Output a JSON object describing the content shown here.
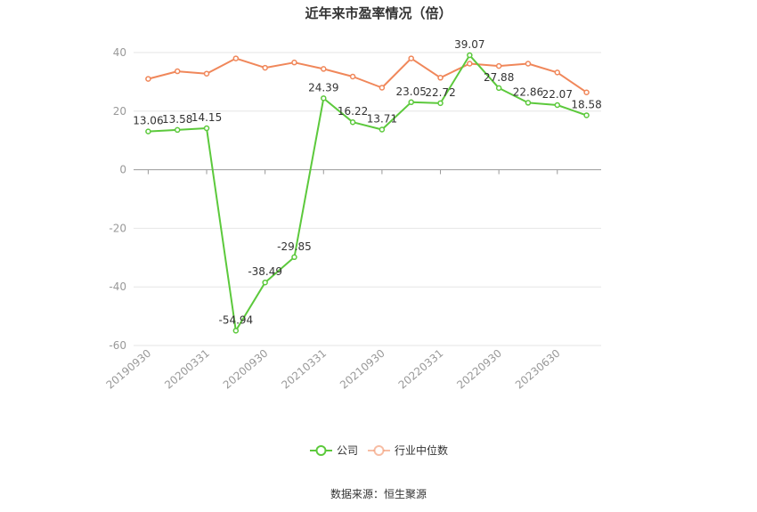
{
  "chart_data": {
    "type": "line",
    "title": "近年来市盈率情况（倍）",
    "source": "数据来源：恒生聚源",
    "x_tick_labels": [
      "20190930",
      "20200331",
      "20200930",
      "20210331",
      "20210930",
      "20220331",
      "20220930",
      "20230630"
    ],
    "x_tick_indices": [
      0,
      2,
      4,
      6,
      8,
      10,
      12,
      14
    ],
    "ylim": [
      -60,
      40
    ],
    "y_ticks": [
      40,
      20,
      0,
      -20,
      -40,
      -60
    ],
    "grid": true,
    "legend_position": "bottom",
    "series": [
      {
        "name": "公司",
        "color": "#5cc93c",
        "values": [
          13.06,
          13.58,
          14.15,
          -54.94,
          -38.49,
          -29.85,
          24.39,
          16.22,
          13.71,
          23.05,
          22.72,
          39.07,
          27.88,
          22.86,
          22.07,
          18.58
        ],
        "labels": [
          "13.06",
          "13.58",
          "14.15",
          "-54.94",
          "-38.49",
          "-29.85",
          "24.39",
          "16.22",
          "13.71",
          "23.05",
          "22.72",
          "39.07",
          "27.88",
          "22.86",
          "22.07",
          "18.58"
        ]
      },
      {
        "name": "行业中位数",
        "color": "#f0875a",
        "values": [
          31.0,
          33.6,
          32.8,
          38.0,
          34.8,
          36.6,
          34.4,
          31.8,
          28.0,
          38.0,
          31.4,
          36.2,
          35.4,
          36.2,
          33.2,
          26.4
        ]
      }
    ]
  }
}
